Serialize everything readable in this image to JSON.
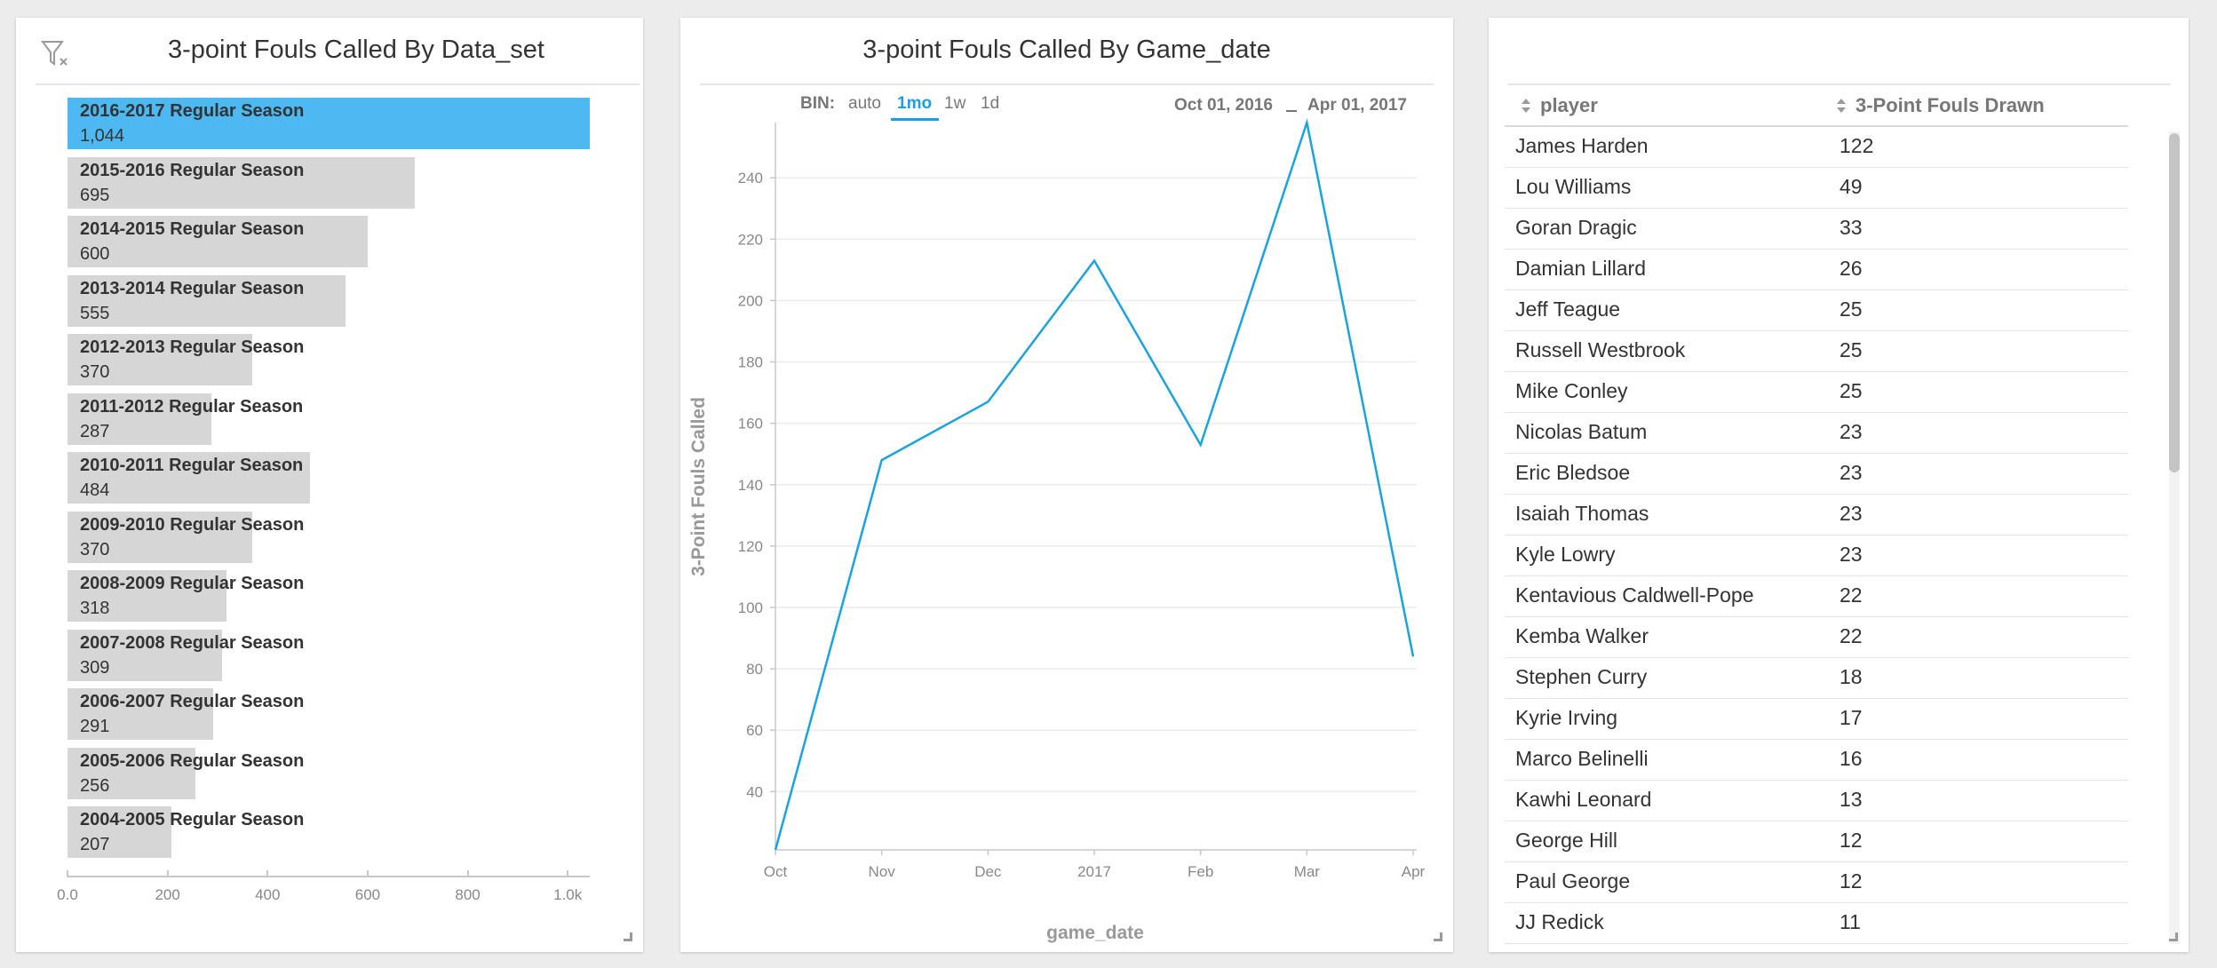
{
  "left_panel": {
    "title": "3-point Fouls Called By Data_set",
    "icon": "filter-clear-icon",
    "bar_color": "#d6d6d6",
    "selected_color": "#4db8f2",
    "bars": [
      {
        "label": "2016-2017 Regular Season",
        "value_text": "1,044",
        "value": 1044,
        "selected": true
      },
      {
        "label": "2015-2016 Regular Season",
        "value_text": "695",
        "value": 695
      },
      {
        "label": "2014-2015 Regular Season",
        "value_text": "600",
        "value": 600
      },
      {
        "label": "2013-2014 Regular Season",
        "value_text": "555",
        "value": 555
      },
      {
        "label": "2012-2013 Regular Season",
        "value_text": "370",
        "value": 370
      },
      {
        "label": "2011-2012 Regular Season",
        "value_text": "287",
        "value": 287
      },
      {
        "label": "2010-2011 Regular Season",
        "value_text": "484",
        "value": 484
      },
      {
        "label": "2009-2010 Regular Season",
        "value_text": "370",
        "value": 370
      },
      {
        "label": "2008-2009 Regular Season",
        "value_text": "318",
        "value": 318
      },
      {
        "label": "2007-2008 Regular Season",
        "value_text": "309",
        "value": 309
      },
      {
        "label": "2006-2007 Regular Season",
        "value_text": "291",
        "value": 291
      },
      {
        "label": "2005-2006 Regular Season",
        "value_text": "256",
        "value": 256
      },
      {
        "label": "2004-2005 Regular Season",
        "value_text": "207",
        "value": 207
      }
    ],
    "x_ticks": [
      "0.0",
      "200",
      "400",
      "600",
      "800",
      "1.0k"
    ],
    "x_max": 1044
  },
  "mid_panel": {
    "title": "3-point Fouls Called By Game_date",
    "bin_label": "BIN:",
    "bin_options": [
      "auto",
      "1mo",
      "1w",
      "1d"
    ],
    "bin_active": "1mo",
    "range_start": "Oct 01, 2016",
    "range_end": "Apr 01, 2017",
    "line_color": "#1aa3e0"
  },
  "right_panel": {
    "title": "",
    "columns": [
      "player",
      "3-Point Fouls Drawn"
    ],
    "rows": [
      [
        "James Harden",
        "122"
      ],
      [
        "Lou Williams",
        "49"
      ],
      [
        "Goran Dragic",
        "33"
      ],
      [
        "Damian Lillard",
        "26"
      ],
      [
        "Jeff Teague",
        "25"
      ],
      [
        "Russell Westbrook",
        "25"
      ],
      [
        "Mike Conley",
        "25"
      ],
      [
        "Nicolas Batum",
        "23"
      ],
      [
        "Eric Bledsoe",
        "23"
      ],
      [
        "Isaiah Thomas",
        "23"
      ],
      [
        "Kyle Lowry",
        "23"
      ],
      [
        "Kentavious Caldwell-Pope",
        "22"
      ],
      [
        "Kemba Walker",
        "22"
      ],
      [
        "Stephen Curry",
        "18"
      ],
      [
        "Kyrie Irving",
        "17"
      ],
      [
        "Marco Belinelli",
        "16"
      ],
      [
        "Kawhi Leonard",
        "13"
      ],
      [
        "George Hill",
        "12"
      ],
      [
        "Paul George",
        "12"
      ],
      [
        "JJ Redick",
        "11"
      ]
    ]
  },
  "chart_data": [
    {
      "type": "bar",
      "title": "3-point Fouls Called By Data_set",
      "orientation": "horizontal",
      "categories": [
        "2016-2017 Regular Season",
        "2015-2016 Regular Season",
        "2014-2015 Regular Season",
        "2013-2014 Regular Season",
        "2012-2013 Regular Season",
        "2011-2012 Regular Season",
        "2010-2011 Regular Season",
        "2009-2010 Regular Season",
        "2008-2009 Regular Season",
        "2007-2008 Regular Season",
        "2006-2007 Regular Season",
        "2005-2006 Regular Season",
        "2004-2005 Regular Season"
      ],
      "values": [
        1044,
        695,
        600,
        555,
        370,
        287,
        484,
        370,
        318,
        309,
        291,
        256,
        207
      ],
      "xlim": [
        0,
        1044
      ],
      "x_ticks": [
        "0.0",
        "200",
        "400",
        "600",
        "800",
        "1.0k"
      ]
    },
    {
      "type": "line",
      "title": "3-point Fouls Called By Game_date",
      "xlabel": "game_date",
      "ylabel": "3-Point Fouls Called",
      "categories": [
        "Oct",
        "Nov",
        "Dec",
        "2017",
        "Feb",
        "Mar",
        "Apr"
      ],
      "values": [
        21,
        148,
        167,
        213,
        153,
        258,
        84
      ],
      "ylim": [
        21,
        258
      ],
      "y_ticks": [
        40,
        60,
        80,
        100,
        120,
        140,
        160,
        180,
        200,
        220,
        240
      ],
      "grid": true
    }
  ]
}
